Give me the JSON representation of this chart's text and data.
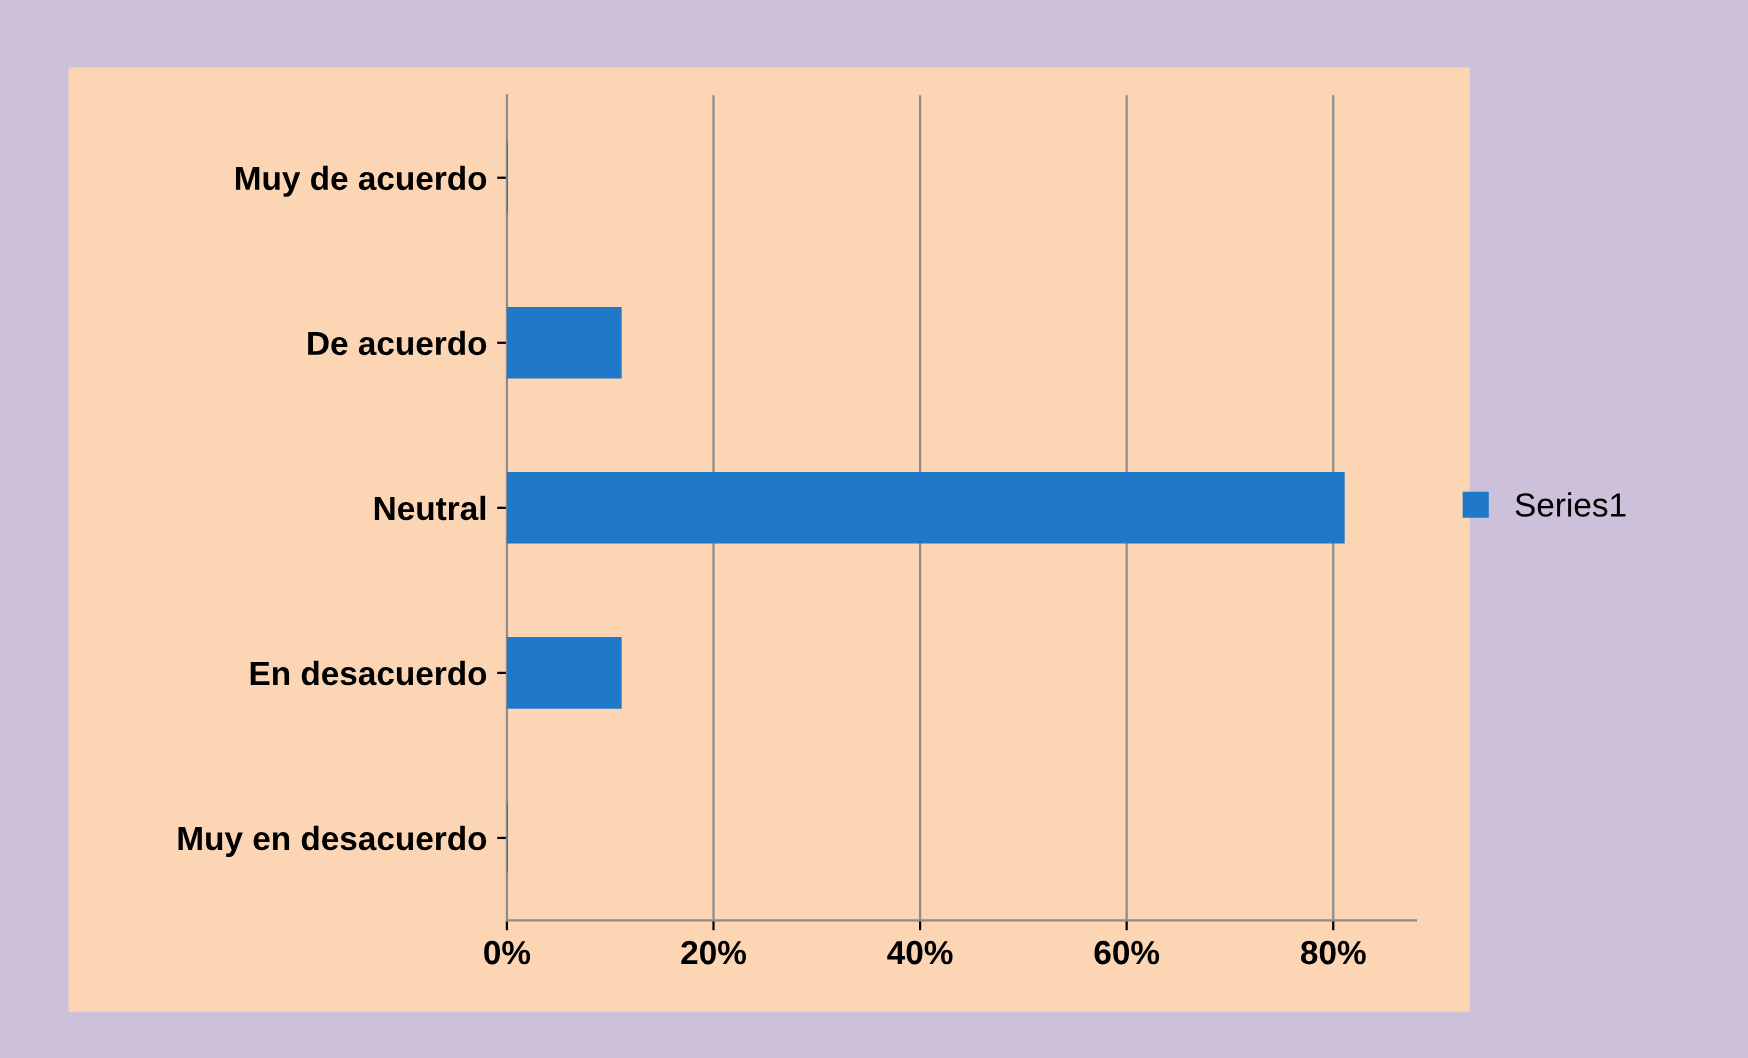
{
  "chart_data": {
    "type": "bar",
    "orientation": "horizontal",
    "categories": [
      "Muy de acuerdo",
      "De acuerdo",
      "Neutral",
      "En desacuerdo",
      "Muy en desacuerdo"
    ],
    "series": [
      {
        "name": "Series1",
        "color": "#1f78c8",
        "values": [
          0,
          11,
          81,
          11,
          0
        ]
      }
    ],
    "xlim": [
      0,
      88
    ],
    "xticks": [
      {
        "value": 0,
        "label": "0%"
      },
      {
        "value": 20,
        "label": "20%"
      },
      {
        "value": 40,
        "label": "40%"
      },
      {
        "value": 60,
        "label": "60%"
      },
      {
        "value": 80,
        "label": "80%"
      }
    ],
    "grid": "x",
    "legend": "right"
  }
}
